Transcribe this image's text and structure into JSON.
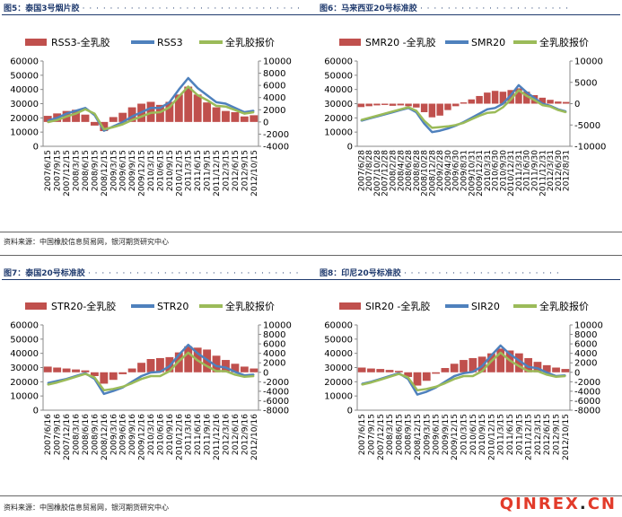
{
  "headers": {
    "h5": "图5：泰国3号烟片胶",
    "h6": "图6：马来西亚20号标准胶",
    "h7": "图7：泰国20号标准胶",
    "h8": "图8：印尼20号标准胶"
  },
  "source_top": "资料来源：中国橡胶信息贸易网，银河期货研究中心",
  "source_bottom": "资料来源：中国橡胶信息贸易网，银河期货研究中心",
  "watermark": {
    "left": "QINREX",
    "dot": ".",
    "right": "CN"
  },
  "colors": {
    "spread": "#c0504d",
    "price": "#4f81bd",
    "quote": "#9bbb59",
    "header": "#1f3a6e"
  },
  "chart_data": [
    {
      "type": "bar+line",
      "id": "rss3",
      "legend": [
        "RSS3-全乳胶",
        "RSS3",
        "全乳胶报价"
      ],
      "x": [
        "2007/6/15",
        "2007/9/15",
        "2007/12/15",
        "2008/3/15",
        "2008/6/15",
        "2008/9/15",
        "2008/12/15",
        "2009/3/15",
        "2009/6/15",
        "2009/9/15",
        "2009/12/15",
        "2010/3/15",
        "2010/6/15",
        "2010/9/15",
        "2010/12/15",
        "2011/3/15",
        "2011/6/15",
        "2011/9/15",
        "2011/12/15",
        "2012/3/15",
        "2012/6/15",
        "2012/9/15",
        "2012/10/15"
      ],
      "left_axis": {
        "min": 0,
        "max": 60000,
        "ticks": [
          0,
          10000,
          20000,
          30000,
          40000,
          50000,
          60000
        ]
      },
      "right_axis": {
        "min": -4000,
        "max": 10000,
        "ticks": [
          -4000,
          -2000,
          0,
          2000,
          4000,
          6000,
          8000,
          10000
        ]
      },
      "series": [
        {
          "name": "RSS3-全乳胶",
          "axis": "right",
          "values": [
            1000,
            1400,
            1800,
            2000,
            1200,
            -600,
            -1500,
            800,
            1500,
            2400,
            3000,
            3300,
            2800,
            3300,
            4500,
            5800,
            4500,
            3200,
            2400,
            1800,
            1600,
            900,
            1100
          ]
        },
        {
          "name": "RSS3",
          "axis": "left",
          "values": [
            18000,
            20000,
            23000,
            25000,
            27000,
            22000,
            11000,
            14000,
            17000,
            21000,
            24000,
            27000,
            27000,
            31000,
            40000,
            48000,
            41000,
            36000,
            31000,
            30000,
            27000,
            24000,
            25000
          ]
        },
        {
          "name": "全乳胶报价",
          "axis": "left",
          "values": [
            17000,
            18500,
            21000,
            23000,
            26000,
            23000,
            12000,
            13500,
            15500,
            18500,
            21000,
            23500,
            24000,
            27500,
            35000,
            42000,
            36000,
            32500,
            28500,
            28000,
            25500,
            23000,
            24000
          ]
        }
      ]
    },
    {
      "type": "bar+line",
      "id": "smr20",
      "legend": [
        "SMR20 -全乳胶",
        "SMR20",
        "全乳胶报价"
      ],
      "x": [
        "2007/6/28",
        "2007/8/28",
        "2007/10/28",
        "2007/12/28",
        "2008/2/28",
        "2008/4/28",
        "2008/6/28",
        "2008/8/28",
        "2008/10/28",
        "2008/12/28",
        "2009/2/28",
        "2009/4/30",
        "2009/6/30",
        "2009/8/31",
        "2009/10/31",
        "2009/12/31",
        "2010/3/31",
        "2010/6/30",
        "2010/9/30",
        "2010/12/31",
        "2011/3/31",
        "2011/6/30",
        "2011/9/30",
        "2011/12/31",
        "2012/3/31",
        "2012/6/30",
        "2012/8/31"
      ],
      "left_axis": {
        "min": 0,
        "max": 60000,
        "ticks": [
          0,
          10000,
          20000,
          30000,
          40000,
          50000,
          60000
        ]
      },
      "right_axis": {
        "min": -10000,
        "max": 10000,
        "ticks": [
          -10000,
          -5000,
          0,
          5000,
          10000
        ]
      },
      "series": [
        {
          "name": "SMR20 -全乳胶",
          "axis": "right",
          "values": [
            -800,
            -600,
            -400,
            -300,
            -500,
            -400,
            -600,
            -900,
            -2000,
            -3200,
            -2800,
            -1500,
            -600,
            300,
            1000,
            1800,
            2600,
            3000,
            2800,
            3200,
            3600,
            2800,
            2000,
            1400,
            900,
            500,
            400
          ]
        },
        {
          "name": "SMR20",
          "axis": "left",
          "values": [
            18000,
            19500,
            21000,
            22500,
            24000,
            25500,
            27000,
            24000,
            16000,
            10000,
            11000,
            12500,
            14500,
            17000,
            20000,
            23000,
            26000,
            27000,
            30000,
            36000,
            43000,
            38000,
            34000,
            30000,
            28500,
            26000,
            24500
          ]
        },
        {
          "name": "全乳胶报价",
          "axis": "left",
          "values": [
            18500,
            20000,
            21500,
            23000,
            24500,
            26000,
            27500,
            25000,
            18000,
            13000,
            13500,
            14000,
            15000,
            16500,
            19000,
            21500,
            23500,
            24000,
            27500,
            33000,
            39500,
            35500,
            32500,
            29000,
            28000,
            25500,
            24000
          ]
        }
      ]
    },
    {
      "type": "bar+line",
      "id": "str20",
      "legend": [
        "STR20-全乳胶",
        "STR20",
        "全乳胶报价"
      ],
      "x": [
        "2007/6/16",
        "2007/9/16",
        "2007/12/16",
        "2008/3/16",
        "2008/6/16",
        "2008/9/16",
        "2008/12/16",
        "2009/3/16",
        "2009/6/16",
        "2009/9/16",
        "2009/12/16",
        "2010/3/16",
        "2010/6/16",
        "2010/9/16",
        "2010/12/16",
        "2011/3/16",
        "2011/6/16",
        "2011/9/16",
        "2011/12/16",
        "2012/3/16",
        "2012/6/16",
        "2012/9/16",
        "2012/10/16"
      ],
      "left_axis": {
        "min": 0,
        "max": 60000,
        "ticks": [
          0,
          10000,
          20000,
          30000,
          40000,
          50000,
          60000
        ]
      },
      "right_axis": {
        "min": -8000,
        "max": 10000,
        "ticks": [
          -8000,
          -6000,
          -4000,
          -2000,
          0,
          2000,
          4000,
          6000,
          8000,
          10000
        ]
      },
      "series": [
        {
          "name": "STR20-全乳胶",
          "axis": "right",
          "values": [
            1200,
            1000,
            800,
            600,
            400,
            -800,
            -2400,
            -1600,
            -400,
            800,
            2000,
            2800,
            3000,
            3200,
            4200,
            5500,
            5200,
            4800,
            3500,
            2600,
            1800,
            1200,
            800
          ]
        },
        {
          "name": "STR20",
          "axis": "left",
          "values": [
            19000,
            20500,
            22000,
            24000,
            26000,
            22000,
            11500,
            13500,
            16000,
            20000,
            24000,
            26500,
            27000,
            31000,
            39000,
            46000,
            40000,
            35500,
            31000,
            30000,
            27000,
            24500,
            25000
          ]
        },
        {
          "name": "全乳胶报价",
          "axis": "left",
          "values": [
            18000,
            19500,
            21500,
            23500,
            25500,
            23000,
            14000,
            15000,
            16500,
            19000,
            22000,
            24000,
            24000,
            27500,
            34500,
            40500,
            35000,
            31000,
            27500,
            27500,
            25000,
            23500,
            24000
          ]
        }
      ]
    },
    {
      "type": "bar+line",
      "id": "sir20",
      "legend": [
        "SIR20 -全乳胶",
        "SIR20",
        "全乳胶报价"
      ],
      "x": [
        "2007/6/15",
        "2007/9/15",
        "2007/12/15",
        "2008/3/15",
        "2008/6/15",
        "2008/9/15",
        "2008/12/15",
        "2009/3/15",
        "2009/6/15",
        "2009/9/15",
        "2009/12/15",
        "2010/3/15",
        "2010/6/15",
        "2010/9/15",
        "2010/12/15",
        "2011/3/15",
        "2011/6/15",
        "2011/9/15",
        "2011/12/15",
        "2012/3/15",
        "2012/6/15",
        "2012/9/15",
        "2012/10/15"
      ],
      "left_axis": {
        "min": 0,
        "max": 60000,
        "ticks": [
          0,
          10000,
          20000,
          30000,
          40000,
          50000,
          60000
        ]
      },
      "right_axis": {
        "min": -8000,
        "max": 10000,
        "ticks": [
          -8000,
          -6000,
          -4000,
          -2000,
          0,
          2000,
          4000,
          6000,
          8000,
          10000
        ]
      },
      "series": [
        {
          "name": "SIR20 -全乳胶",
          "axis": "right",
          "values": [
            1000,
            800,
            700,
            500,
            300,
            -1000,
            -2800,
            -1800,
            -300,
            900,
            1800,
            2600,
            3000,
            3300,
            4000,
            5000,
            4600,
            4000,
            3000,
            2200,
            1500,
            1000,
            700
          ]
        },
        {
          "name": "SIR20",
          "axis": "left",
          "values": [
            18500,
            20000,
            22000,
            24000,
            26000,
            22000,
            11000,
            13000,
            16000,
            20000,
            24000,
            26000,
            27000,
            31000,
            38500,
            45500,
            39500,
            35000,
            30500,
            29500,
            26500,
            24000,
            24500
          ]
        },
        {
          "name": "全乳胶报价",
          "axis": "left",
          "values": [
            18000,
            19500,
            21500,
            23500,
            25500,
            23000,
            14000,
            15000,
            16500,
            19000,
            22000,
            24000,
            24000,
            27500,
            34500,
            40500,
            35000,
            31000,
            27500,
            27500,
            25000,
            23500,
            24000
          ]
        }
      ]
    }
  ]
}
